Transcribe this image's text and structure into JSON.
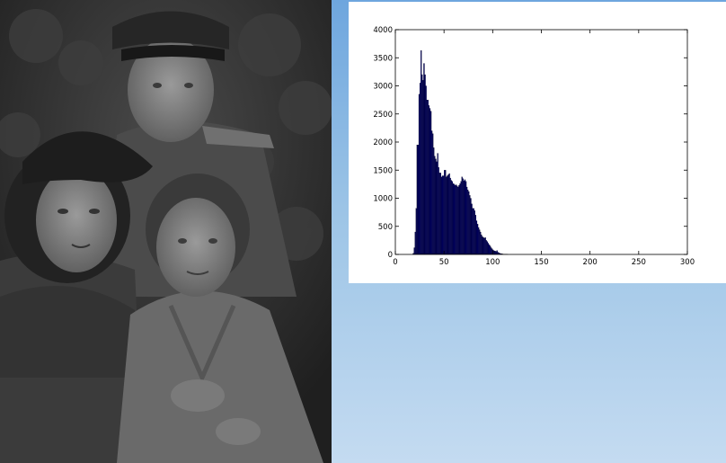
{
  "photo": {
    "icon": "grayscale-family-portrait-image",
    "tone": "#2c2c2c"
  },
  "histogram": {
    "bar_color": "#000066",
    "chart_data": {
      "type": "bar",
      "title": "",
      "xlabel": "",
      "ylabel": "",
      "xlim": [
        0,
        300
      ],
      "ylim": [
        0,
        4000
      ],
      "xticks": [
        "0",
        "50",
        "100",
        "150",
        "200",
        "250",
        "300"
      ],
      "yticks": [
        "0",
        "500",
        "1000",
        "1500",
        "2000",
        "2500",
        "3000",
        "3500",
        "4000"
      ],
      "grid": false,
      "legend": "none",
      "bin_width": 1,
      "x": [
        18,
        19,
        20,
        21,
        22,
        23,
        24,
        25,
        26,
        27,
        28,
        29,
        30,
        31,
        32,
        33,
        34,
        35,
        36,
        37,
        38,
        39,
        40,
        41,
        42,
        43,
        44,
        45,
        46,
        47,
        48,
        49,
        50,
        51,
        52,
        53,
        54,
        55,
        56,
        57,
        58,
        59,
        60,
        61,
        62,
        63,
        64,
        65,
        66,
        67,
        68,
        69,
        70,
        71,
        72,
        73,
        74,
        75,
        76,
        77,
        78,
        79,
        80,
        81,
        82,
        83,
        84,
        85,
        86,
        87,
        88,
        89,
        90,
        91,
        92,
        93,
        94,
        95,
        96,
        97,
        98,
        99,
        100,
        101,
        102,
        103,
        104,
        105,
        106,
        107,
        108,
        109,
        110,
        111,
        112,
        113,
        114,
        115
      ],
      "values": [
        20,
        120,
        400,
        820,
        1950,
        1950,
        2850,
        3050,
        3630,
        3200,
        3100,
        3400,
        3200,
        3000,
        2750,
        2750,
        2650,
        2600,
        2550,
        2200,
        2150,
        1900,
        1750,
        1700,
        1650,
        1800,
        1550,
        1450,
        1450,
        1380,
        1400,
        1400,
        1500,
        1500,
        1380,
        1400,
        1420,
        1440,
        1360,
        1320,
        1300,
        1260,
        1250,
        1230,
        1240,
        1220,
        1200,
        1230,
        1260,
        1300,
        1380,
        1350,
        1310,
        1330,
        1300,
        1200,
        1150,
        1120,
        1050,
        1000,
        900,
        820,
        820,
        780,
        700,
        600,
        540,
        480,
        440,
        400,
        350,
        320,
        300,
        290,
        300,
        250,
        230,
        200,
        170,
        150,
        120,
        100,
        80,
        65,
        60,
        55,
        70,
        40,
        30,
        20,
        15,
        12,
        8,
        5,
        4,
        3,
        2,
        1
      ]
    }
  }
}
